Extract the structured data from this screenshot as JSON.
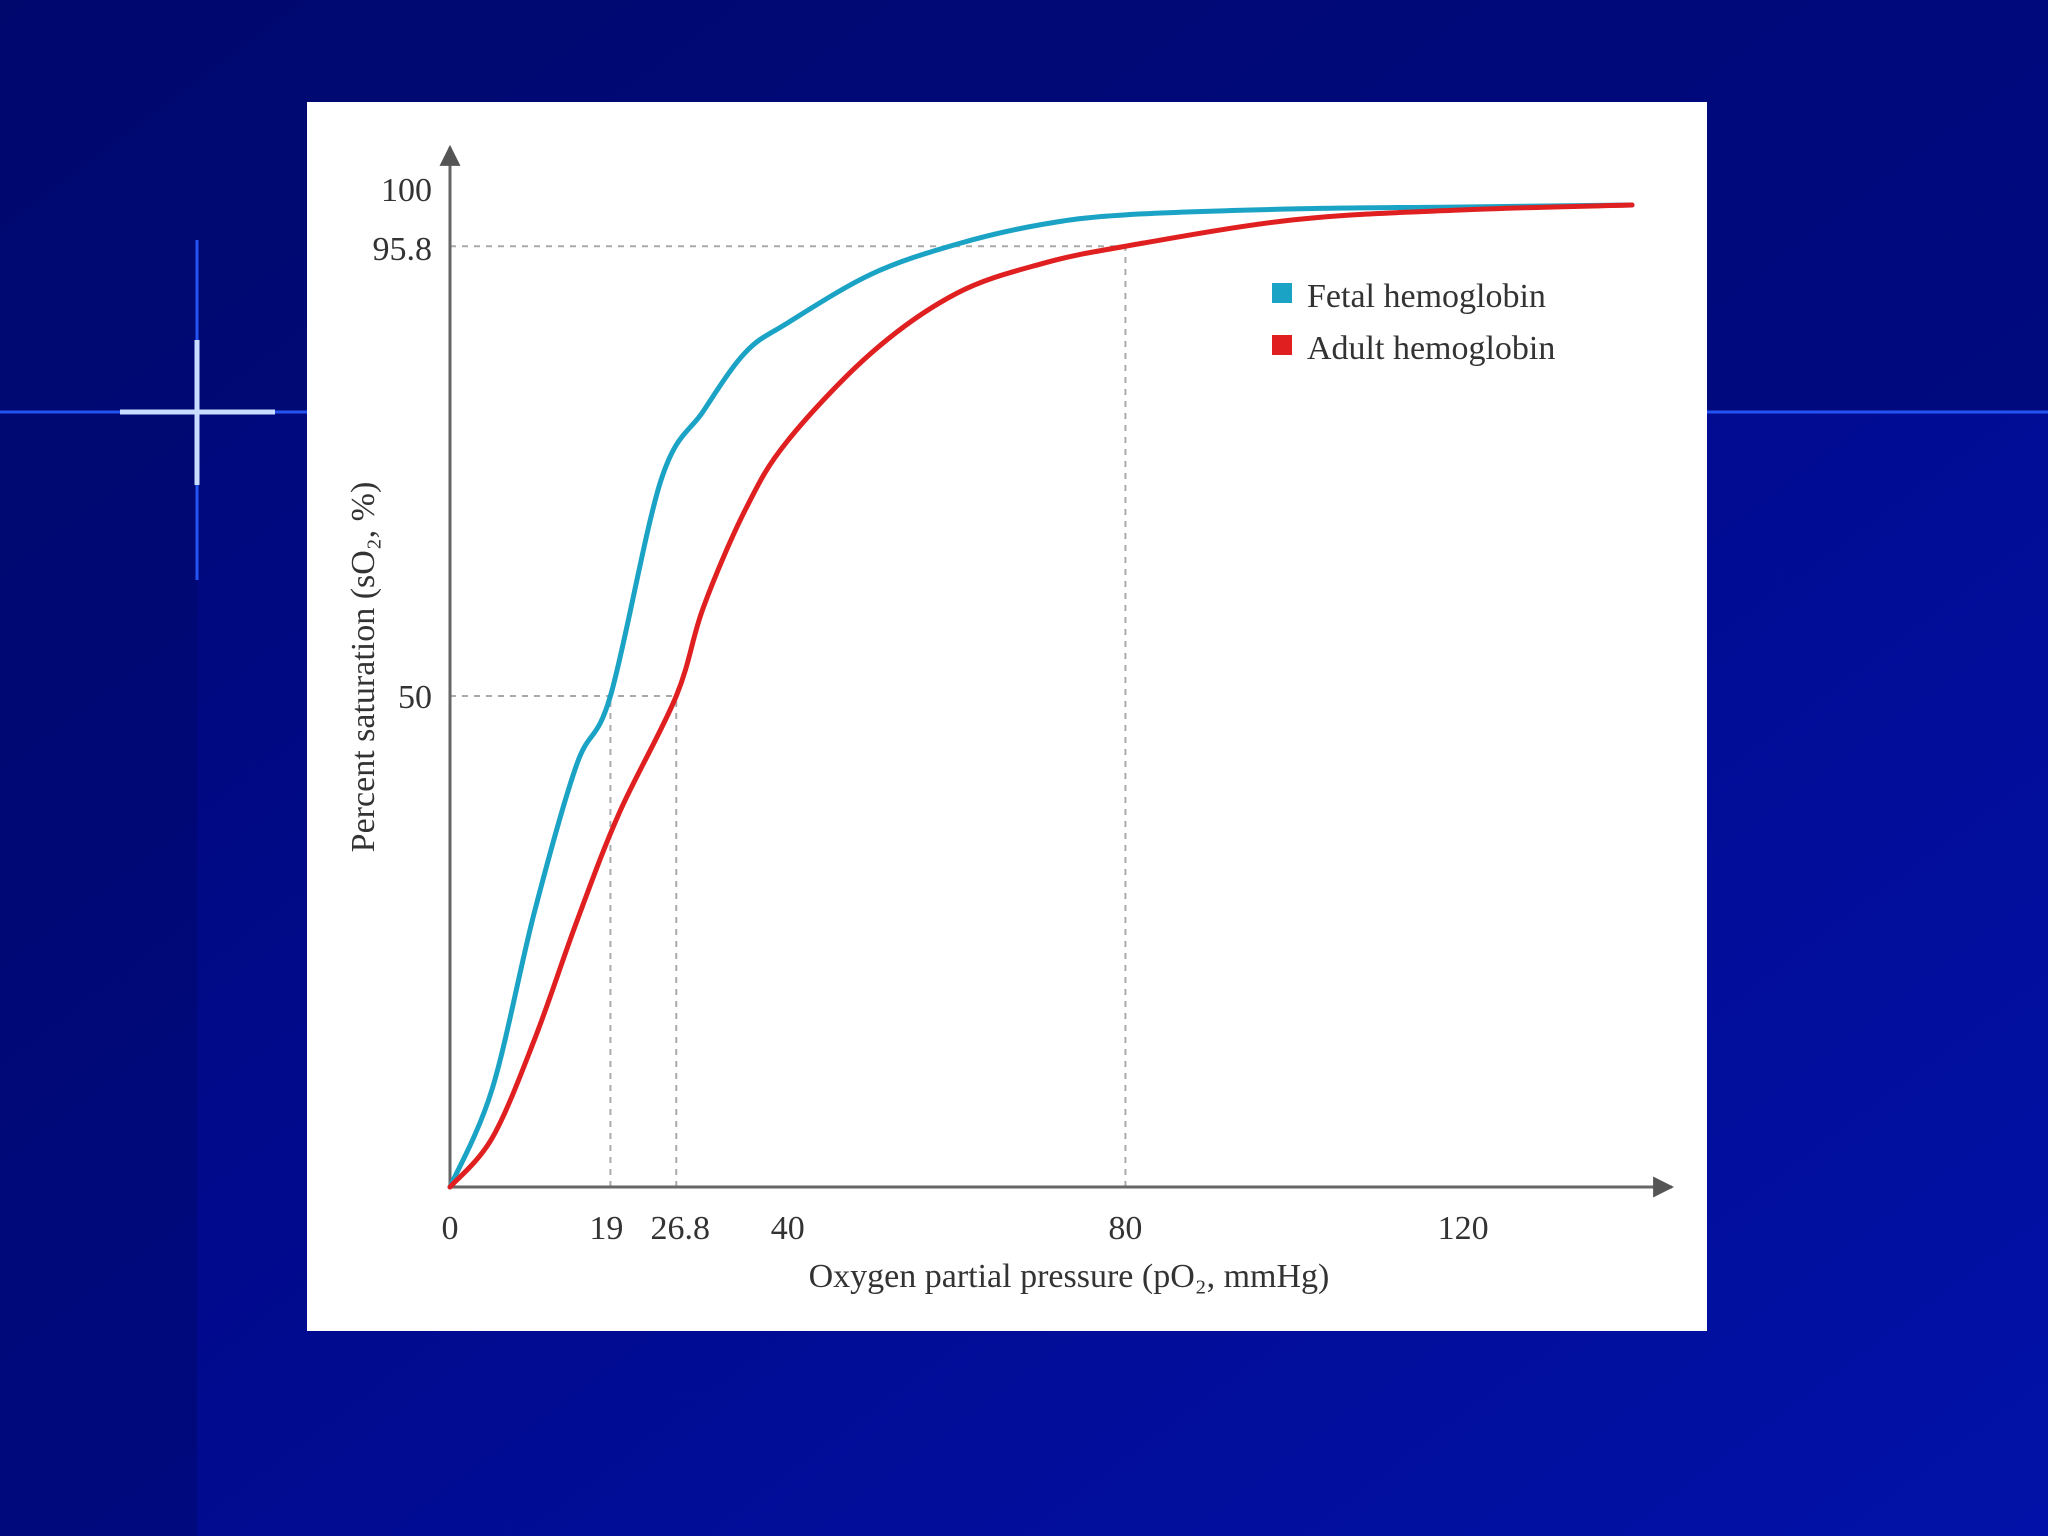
{
  "slide": {
    "background_colors": [
      "#000870",
      "#010a8c",
      "#0212a8"
    ],
    "accent_line_color": "#3a6bff"
  },
  "chart_data": {
    "type": "line",
    "title": "",
    "xlabel": "Oxygen partial pressure (pO₂, mmHg)",
    "ylabel": "Percent saturation (sO₂, %)",
    "xlim": [
      0,
      140
    ],
    "ylim": [
      0,
      100
    ],
    "x_ticks": [
      "0",
      "19",
      "26.8",
      "40",
      "80",
      "120"
    ],
    "y_ticks": [
      "50",
      "95.8",
      "100"
    ],
    "reference_lines": [
      {
        "axis": "y",
        "value": 95.8
      },
      {
        "axis": "y",
        "value": 50
      },
      {
        "axis": "x",
        "value": 19
      },
      {
        "axis": "x",
        "value": 26.8
      },
      {
        "axis": "x",
        "value": 80
      }
    ],
    "series": [
      {
        "name": "Fetal hemoglobin",
        "color": "#1aa3c4",
        "x": [
          0,
          5,
          10,
          15,
          19,
          25,
          30,
          35,
          40,
          50,
          60,
          70,
          80,
          100,
          120,
          140
        ],
        "y": [
          0,
          10,
          28,
          43,
          50,
          72,
          79,
          85,
          88,
          93,
          96,
          98,
          99,
          99.6,
          99.8,
          100
        ]
      },
      {
        "name": "Adult hemoglobin",
        "color": "#e02020",
        "x": [
          0,
          5,
          10,
          15,
          20,
          26.8,
          30,
          35,
          40,
          50,
          60,
          70,
          80,
          100,
          120,
          140
        ],
        "y": [
          0,
          5,
          15,
          27,
          38,
          50,
          59,
          69,
          76,
          85,
          91,
          94,
          95.8,
          98.5,
          99.5,
          100
        ]
      }
    ],
    "grid": false,
    "legend_position": "top-right"
  }
}
